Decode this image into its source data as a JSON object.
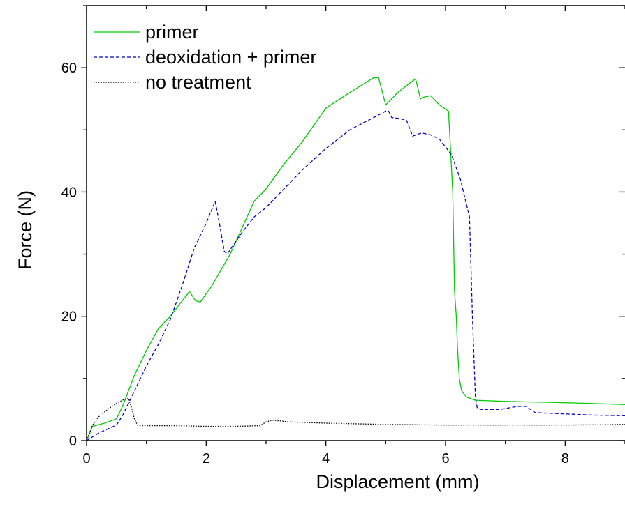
{
  "chart_data": {
    "type": "line",
    "title": "",
    "xlabel": "Displacement (mm)",
    "ylabel": "Force (N)",
    "xlim": [
      0,
      9
    ],
    "ylim": [
      0,
      70
    ],
    "xticks": [
      0,
      2,
      4,
      6,
      8
    ],
    "yticks": [
      0,
      20,
      40,
      60
    ],
    "grid": false,
    "legend_position": "top-left",
    "series": [
      {
        "name": "primer",
        "color": "#00cc00",
        "dash": "solid",
        "x": [
          0,
          0.1,
          0.3,
          0.5,
          0.6,
          0.8,
          1.0,
          1.2,
          1.4,
          1.6,
          1.72,
          1.82,
          1.9,
          2.1,
          2.4,
          2.8,
          3.0,
          3.3,
          3.6,
          4.0,
          4.4,
          4.8,
          4.88,
          5.0,
          5.2,
          5.4,
          5.5,
          5.58,
          5.65,
          5.75,
          5.9,
          6.05,
          6.12,
          6.15,
          6.18,
          6.2,
          6.23,
          6.27,
          6.35,
          6.5,
          7.0,
          8.0,
          9.0
        ],
        "y": [
          0,
          2.3,
          2.8,
          3.5,
          5.5,
          10.5,
          14.5,
          18,
          20,
          22.5,
          24,
          22.5,
          22.3,
          25,
          30,
          38.5,
          40.5,
          44.5,
          48,
          53.5,
          56,
          58.4,
          58.4,
          54,
          56,
          57.5,
          58.2,
          55,
          55.3,
          55.5,
          54,
          53,
          40,
          24,
          20,
          15,
          10,
          8,
          7,
          6.5,
          6.3,
          6.1,
          5.8
        ]
      },
      {
        "name": "deoxidation + primer",
        "color": "#0000cc",
        "dash": "dashed",
        "x": [
          0,
          0.2,
          0.5,
          0.6,
          0.7,
          0.8,
          1.0,
          1.2,
          1.4,
          1.6,
          1.8,
          2.0,
          2.15,
          2.22,
          2.3,
          2.35,
          2.6,
          2.8,
          3.0,
          3.2,
          3.6,
          4.0,
          4.4,
          4.8,
          5.0,
          5.05,
          5.1,
          5.25,
          5.35,
          5.45,
          5.6,
          5.75,
          5.9,
          6.1,
          6.25,
          6.4,
          6.45,
          6.5,
          6.53,
          6.6,
          6.9,
          7.2,
          7.35,
          7.5,
          8.0,
          8.5,
          9.0
        ],
        "y": [
          0,
          1.2,
          2.5,
          4,
          6,
          8,
          12,
          15.5,
          19.5,
          25,
          31,
          35,
          38.5,
          35,
          30.5,
          30,
          33.5,
          36,
          37.5,
          39.5,
          43.5,
          47,
          50,
          52,
          53,
          53,
          52,
          51.8,
          51.5,
          49,
          49.5,
          49.2,
          48.5,
          46,
          42,
          36,
          20,
          7,
          5.2,
          5,
          5,
          5.5,
          5.5,
          4.5,
          4.3,
          4.1,
          4.0
        ]
      },
      {
        "name": "no treatment",
        "color": "#000000",
        "dash": "dotted",
        "x": [
          0,
          0.1,
          0.2,
          0.35,
          0.5,
          0.62,
          0.7,
          0.76,
          0.8,
          0.85,
          0.9,
          1.5,
          2.0,
          2.5,
          2.9,
          3.0,
          3.1,
          3.4,
          4.0,
          5.0,
          6.0,
          7.0,
          8.0,
          9.0
        ],
        "y": [
          0,
          2.5,
          3.8,
          5,
          6,
          6.6,
          6.8,
          5,
          3.5,
          2.5,
          2.4,
          2.4,
          2.3,
          2.3,
          2.4,
          3,
          3.3,
          3.0,
          2.8,
          2.6,
          2.5,
          2.5,
          2.5,
          2.6
        ]
      }
    ]
  }
}
